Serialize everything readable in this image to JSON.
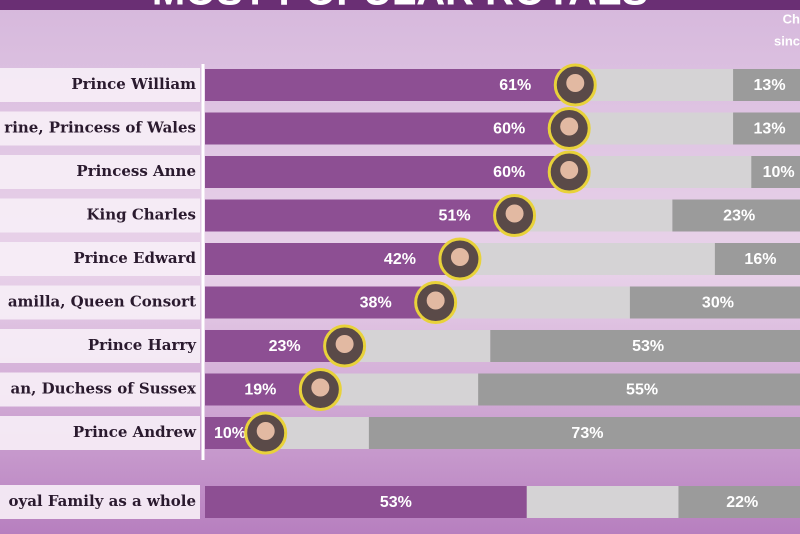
{
  "chart_data": {
    "type": "bar",
    "title": "MOST POPULAR ROYALS",
    "annotations": [
      "Ch",
      "sinc"
    ],
    "categories": [
      "Prince William",
      "rine, Princess of Wales",
      "Princess Anne",
      "King Charles",
      "Prince Edward",
      "amilla, Queen Consort",
      "Prince Harry",
      "an, Duchess of Sussex",
      "Prince Andrew",
      "oyal Family as a whole"
    ],
    "xlim": [
      0,
      100
    ],
    "series": [
      {
        "color": "#8d4f93",
        "values": [
          61,
          60,
          60,
          51,
          42,
          38,
          23,
          19,
          10,
          53
        ],
        "value_labels": [
          "61%",
          "60%",
          "60%",
          "51%",
          "42%",
          "38%",
          "23%",
          "19%",
          "10%",
          "53%"
        ]
      },
      {
        "color": "#9b9b9b",
        "values": [
          13,
          13,
          10,
          23,
          16,
          30,
          53,
          55,
          73,
          22
        ],
        "value_labels": [
          "13%",
          "13%",
          "10%",
          "23%",
          "16%",
          "30%",
          "53%",
          "55%",
          "73%",
          "22%"
        ]
      }
    ]
  }
}
